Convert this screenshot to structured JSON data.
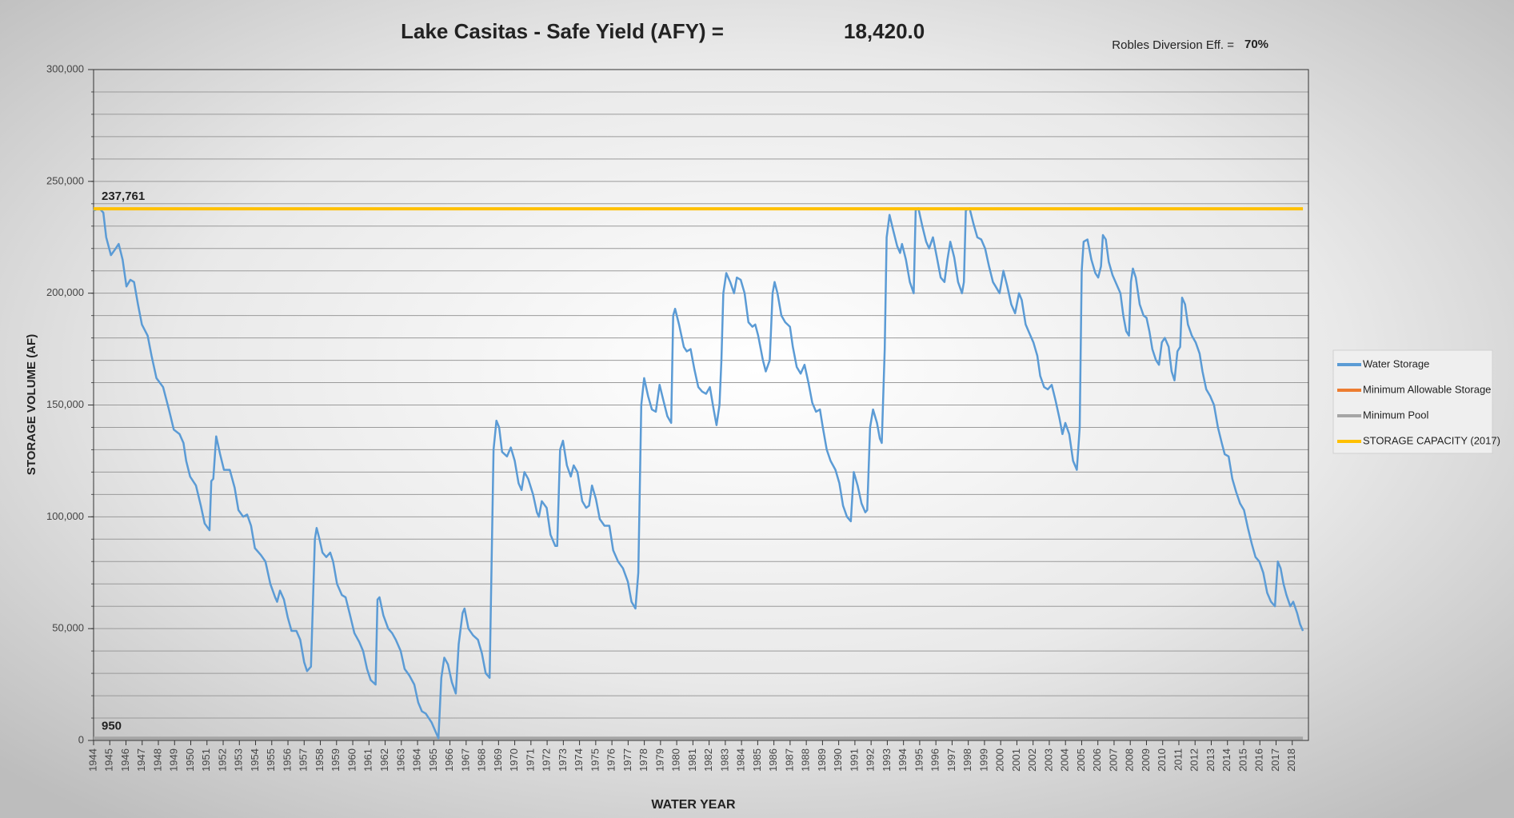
{
  "chart_data": {
    "type": "line",
    "title": "Lake Casitas - Safe Yield (AFY) =",
    "title_value": "18,420.0",
    "subtitle": "Robles Diversion Eff. =",
    "subtitle_value": "70%",
    "x_label": "WATER YEAR",
    "y_label": "STORAGE VOLUME (AF)",
    "xlim": [
      1944,
      2019
    ],
    "xticks": [
      1944,
      1945,
      1946,
      1947,
      1948,
      1949,
      1950,
      1951,
      1952,
      1953,
      1954,
      1955,
      1956,
      1957,
      1958,
      1959,
      1960,
      1961,
      1962,
      1963,
      1964,
      1965,
      1966,
      1967,
      1968,
      1969,
      1970,
      1971,
      1972,
      1973,
      1974,
      1975,
      1976,
      1977,
      1978,
      1979,
      1980,
      1981,
      1982,
      1983,
      1984,
      1985,
      1986,
      1987,
      1988,
      1989,
      1990,
      1991,
      1992,
      1993,
      1994,
      1995,
      1996,
      1997,
      1998,
      1999,
      2000,
      2001,
      2002,
      2003,
      2004,
      2005,
      2006,
      2007,
      2008,
      2009,
      2010,
      2011,
      2012,
      2013,
      2014,
      2015,
      2016,
      2017,
      2018
    ],
    "ylim": [
      0,
      300000
    ],
    "yticks": [
      0,
      {
        "value": 50000,
        "label": "50,000"
      },
      {
        "value": 100000,
        "label": "100,000"
      },
      {
        "value": 150000,
        "label": "150,000"
      },
      {
        "value": 200000,
        "label": "200,000"
      },
      {
        "value": 250000,
        "label": "250,000"
      },
      {
        "value": 300000,
        "label": "300,000"
      }
    ],
    "ygrid": [
      0,
      10000,
      20000,
      30000,
      40000,
      50000,
      60000,
      70000,
      80000,
      90000,
      100000,
      110000,
      120000,
      130000,
      140000,
      150000,
      160000,
      170000,
      180000,
      190000,
      200000,
      210000,
      220000,
      230000,
      240000,
      250000,
      260000,
      270000,
      280000,
      290000,
      300000
    ],
    "grid": true,
    "legend": "right",
    "series": [
      {
        "name": "Water Storage",
        "color": "#5b9bd5",
        "x": [
          1944.0,
          1944.36,
          1944.6,
          1944.78,
          1945.07,
          1945.37,
          1945.55,
          1945.79,
          1946.03,
          1946.27,
          1946.5,
          1946.74,
          1946.98,
          1947.34,
          1947.58,
          1947.88,
          1948.29,
          1948.65,
          1948.95,
          1949.31,
          1949.55,
          1949.72,
          1949.96,
          1950.32,
          1950.62,
          1950.86,
          1951.16,
          1951.27,
          1951.39,
          1951.57,
          1951.81,
          1952.05,
          1952.41,
          1952.71,
          1952.94,
          1953.24,
          1953.48,
          1953.72,
          1953.96,
          1954.32,
          1954.61,
          1954.91,
          1955.21,
          1955.33,
          1955.51,
          1955.75,
          1955.99,
          1956.22,
          1956.52,
          1956.76,
          1957.0,
          1957.18,
          1957.42,
          1957.66,
          1957.77,
          1957.95,
          1958.13,
          1958.37,
          1958.61,
          1958.79,
          1959.03,
          1959.33,
          1959.56,
          1959.8,
          1960.1,
          1960.4,
          1960.64,
          1960.88,
          1961.11,
          1961.41,
          1961.53,
          1961.65,
          1961.89,
          1962.19,
          1962.43,
          1962.66,
          1962.96,
          1963.2,
          1963.5,
          1963.8,
          1964.04,
          1964.27,
          1964.51,
          1964.69,
          1964.87,
          1965.11,
          1965.29,
          1965.47,
          1965.65,
          1965.88,
          1966.12,
          1966.36,
          1966.54,
          1966.78,
          1966.9,
          1967.14,
          1967.43,
          1967.73,
          1967.97,
          1968.21,
          1968.45,
          1968.69,
          1968.87,
          1969.04,
          1969.22,
          1969.52,
          1969.76,
          1970.0,
          1970.24,
          1970.42,
          1970.6,
          1970.83,
          1971.13,
          1971.37,
          1971.49,
          1971.67,
          1971.97,
          1972.21,
          1972.5,
          1972.62,
          1972.8,
          1972.98,
          1973.22,
          1973.46,
          1973.64,
          1973.87,
          1974.17,
          1974.41,
          1974.59,
          1974.77,
          1975.01,
          1975.25,
          1975.54,
          1975.84,
          1976.08,
          1976.38,
          1976.68,
          1976.98,
          1977.21,
          1977.45,
          1977.63,
          1977.81,
          1977.99,
          1978.23,
          1978.47,
          1978.71,
          1978.94,
          1979.18,
          1979.42,
          1979.66,
          1979.78,
          1979.9,
          1980.14,
          1980.44,
          1980.62,
          1980.86,
          1981.09,
          1981.33,
          1981.57,
          1981.81,
          1982.05,
          1982.28,
          1982.46,
          1982.64,
          1982.76,
          1982.88,
          1983.06,
          1983.3,
          1983.54,
          1983.71,
          1983.95,
          1984.19,
          1984.43,
          1984.67,
          1984.85,
          1985.03,
          1985.32,
          1985.5,
          1985.74,
          1985.92,
          1986.04,
          1986.22,
          1986.46,
          1986.7,
          1986.99,
          1987.17,
          1987.41,
          1987.65,
          1987.89,
          1988.13,
          1988.37,
          1988.6,
          1988.84,
          1989.02,
          1989.26,
          1989.5,
          1989.8,
          1990.04,
          1990.27,
          1990.51,
          1990.75,
          1990.93,
          1991.17,
          1991.41,
          1991.64,
          1991.76,
          1991.94,
          1992.12,
          1992.36,
          1992.54,
          1992.66,
          1992.84,
          1992.96,
          1993.14,
          1993.37,
          1993.61,
          1993.79,
          1993.91,
          1994.15,
          1994.39,
          1994.63,
          1994.75,
          1994.92,
          1995.16,
          1995.4,
          1995.58,
          1995.82,
          1996.06,
          1996.3,
          1996.53,
          1996.71,
          1996.89,
          1997.13,
          1997.37,
          1997.61,
          1997.73,
          1997.85,
          1998.08,
          1998.32,
          1998.56,
          1998.8,
          1999.04,
          1999.28,
          1999.52,
          1999.69,
          1999.93,
          2000.17,
          2000.41,
          2000.65,
          2000.89,
          2001.13,
          2001.3,
          2001.54,
          2001.78,
          2002.02,
          2002.26,
          2002.44,
          2002.68,
          2002.91,
          2003.15,
          2003.39,
          2003.63,
          2003.81,
          2003.99,
          2004.23,
          2004.47,
          2004.7,
          2004.88,
          2005.0,
          2005.12,
          2005.36,
          2005.6,
          2005.84,
          2006.02,
          2006.19,
          2006.31,
          2006.49,
          2006.67,
          2006.91,
          2007.15,
          2007.39,
          2007.57,
          2007.75,
          2007.92,
          2008.04,
          2008.16,
          2008.34,
          2008.58,
          2008.82,
          2009.0,
          2009.18,
          2009.36,
          2009.59,
          2009.77,
          2009.95,
          2010.13,
          2010.37,
          2010.55,
          2010.73,
          2010.91,
          2011.08,
          2011.2,
          2011.38,
          2011.56,
          2011.8,
          2012.04,
          2012.28,
          2012.46,
          2012.69,
          2012.93,
          2013.17,
          2013.41,
          2013.65,
          2013.83,
          2014.07,
          2014.3,
          2014.54,
          2014.78,
          2015.02,
          2015.26,
          2015.5,
          2015.73,
          2015.97,
          2016.21,
          2016.45,
          2016.69,
          2016.93,
          2017.11,
          2017.28,
          2017.46,
          2017.64,
          2017.88,
          2018.06,
          2018.3,
          2018.48,
          2018.66
        ],
        "values": [
          237000,
          238000,
          236000,
          225000,
          217000,
          220000,
          222000,
          215000,
          203000,
          206000,
          205000,
          195000,
          186000,
          181000,
          172000,
          162000,
          158000,
          148000,
          139000,
          137000,
          133000,
          125000,
          118000,
          114000,
          105000,
          97000,
          94000,
          116000,
          117000,
          136000,
          128000,
          121000,
          121000,
          113000,
          103000,
          100000,
          101000,
          96000,
          86000,
          83000,
          80000,
          70000,
          64000,
          62000,
          67000,
          63000,
          55000,
          49000,
          49000,
          45000,
          35000,
          31000,
          33000,
          90000,
          95000,
          90000,
          84000,
          82000,
          84000,
          80000,
          70000,
          65000,
          64000,
          57000,
          48000,
          44000,
          40000,
          32000,
          27000,
          25000,
          63000,
          64000,
          56000,
          50000,
          48000,
          45000,
          40000,
          32000,
          29000,
          25000,
          17000,
          13000,
          12000,
          10000,
          8000,
          4000,
          1000,
          28000,
          37000,
          34000,
          26000,
          21000,
          43000,
          57000,
          59000,
          50000,
          47000,
          45000,
          39000,
          30000,
          28000,
          130000,
          143000,
          140000,
          129000,
          127000,
          131000,
          125000,
          115000,
          112000,
          120000,
          117000,
          110000,
          102000,
          100000,
          107000,
          104000,
          92000,
          87000,
          87000,
          130000,
          134000,
          123000,
          118000,
          123000,
          120000,
          107000,
          104000,
          105000,
          114000,
          108000,
          99000,
          96000,
          96000,
          85000,
          80000,
          77000,
          71000,
          62000,
          59000,
          75000,
          150000,
          162000,
          154000,
          148000,
          147000,
          159000,
          152000,
          145000,
          142000,
          190000,
          193000,
          186000,
          176000,
          174000,
          175000,
          166000,
          158000,
          156000,
          155000,
          158000,
          148000,
          141000,
          150000,
          170000,
          200000,
          209000,
          205000,
          200000,
          207000,
          206000,
          200000,
          187000,
          185000,
          186000,
          181000,
          170000,
          165000,
          170000,
          200000,
          205000,
          200000,
          190000,
          187000,
          185000,
          176000,
          167000,
          164000,
          168000,
          160000,
          151000,
          147000,
          148000,
          140000,
          130000,
          125000,
          121000,
          115000,
          105000,
          100000,
          98000,
          120000,
          114000,
          106000,
          102000,
          103000,
          140000,
          148000,
          142000,
          135000,
          133000,
          175000,
          225000,
          235000,
          228000,
          221000,
          218000,
          222000,
          215000,
          205000,
          200000,
          237000,
          238000,
          230000,
          223000,
          220000,
          225000,
          216000,
          207000,
          205000,
          215000,
          223000,
          216000,
          205000,
          200000,
          205000,
          237000,
          238000,
          231000,
          225000,
          224000,
          220000,
          212000,
          205000,
          203000,
          200000,
          210000,
          203000,
          195000,
          191000,
          200000,
          197000,
          186000,
          182000,
          178000,
          172000,
          163000,
          158000,
          157000,
          159000,
          152000,
          144000,
          137000,
          142000,
          137000,
          125000,
          121000,
          140000,
          210000,
          223000,
          224000,
          215000,
          209000,
          207000,
          212000,
          226000,
          224000,
          214000,
          208000,
          204000,
          200000,
          190000,
          183000,
          181000,
          205000,
          211000,
          207000,
          195000,
          190000,
          189000,
          183000,
          175000,
          170000,
          168000,
          178000,
          180000,
          176000,
          165000,
          161000,
          174000,
          176000,
          198000,
          195000,
          186000,
          181000,
          178000,
          173000,
          165000,
          157000,
          154000,
          150000,
          140000,
          133000,
          128000,
          127000,
          117000,
          111000,
          106000,
          103000,
          95000,
          88000,
          82000,
          80000,
          75000,
          66000,
          62000,
          60000,
          80000,
          77000,
          70000,
          65000,
          60000,
          62000,
          57000,
          52000,
          49000
        ]
      },
      {
        "name": "Minimum Allowable Storage",
        "color": "#ed7d31",
        "x": [],
        "values": []
      },
      {
        "name": "Minimum Pool",
        "color": "#a5a5a5",
        "x": [
          1944,
          2018.66
        ],
        "values": [
          950,
          950
        ],
        "value_labels": [
          "950",
          null
        ]
      },
      {
        "name": "STORAGE CAPACITY (2017)",
        "color": "#ffc000",
        "x": [
          1944,
          2018.66
        ],
        "values": [
          237761,
          237761
        ],
        "value_labels": [
          "237,761",
          null
        ]
      }
    ]
  }
}
